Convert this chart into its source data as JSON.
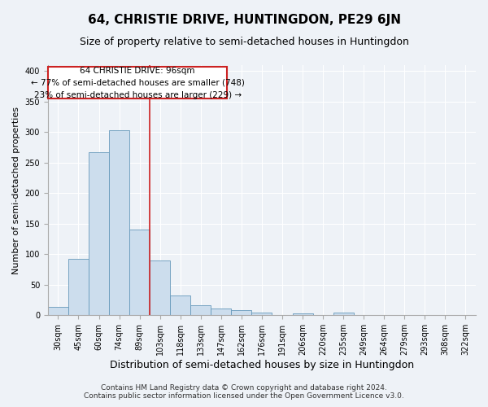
{
  "title": "64, CHRISTIE DRIVE, HUNTINGDON, PE29 6JN",
  "subtitle": "Size of property relative to semi-detached houses in Huntingdon",
  "xlabel": "Distribution of semi-detached houses by size in Huntingdon",
  "ylabel": "Number of semi-detached properties",
  "footnote1": "Contains HM Land Registry data © Crown copyright and database right 2024.",
  "footnote2": "Contains public sector information licensed under the Open Government Licence v3.0.",
  "categories": [
    "30sqm",
    "45sqm",
    "60sqm",
    "74sqm",
    "89sqm",
    "103sqm",
    "118sqm",
    "133sqm",
    "147sqm",
    "162sqm",
    "176sqm",
    "191sqm",
    "206sqm",
    "220sqm",
    "235sqm",
    "249sqm",
    "264sqm",
    "279sqm",
    "293sqm",
    "308sqm",
    "322sqm"
  ],
  "values": [
    14,
    93,
    267,
    303,
    141,
    90,
    33,
    17,
    11,
    8,
    5,
    0,
    3,
    0,
    5,
    0,
    0,
    0,
    0,
    0,
    0
  ],
  "bar_color": "#ccdded",
  "bar_edge_color": "#6699bb",
  "background_color": "#eef2f7",
  "grid_color": "#ffffff",
  "annotation_line1": "64 CHRISTIE DRIVE: 96sqm",
  "annotation_line2": "← 77% of semi-detached houses are smaller (748)",
  "annotation_line3": "23% of semi-detached houses are larger (229) →",
  "annotation_box_color": "#ffffff",
  "annotation_box_edge": "#cc2222",
  "vline_color": "#cc2222",
  "ylim": [
    0,
    410
  ],
  "yticks": [
    0,
    50,
    100,
    150,
    200,
    250,
    300,
    350,
    400
  ],
  "title_fontsize": 11,
  "subtitle_fontsize": 9,
  "annotation_fontsize": 7.5,
  "tick_fontsize": 7,
  "ylabel_fontsize": 8,
  "xlabel_fontsize": 9,
  "footnote_fontsize": 6.5
}
